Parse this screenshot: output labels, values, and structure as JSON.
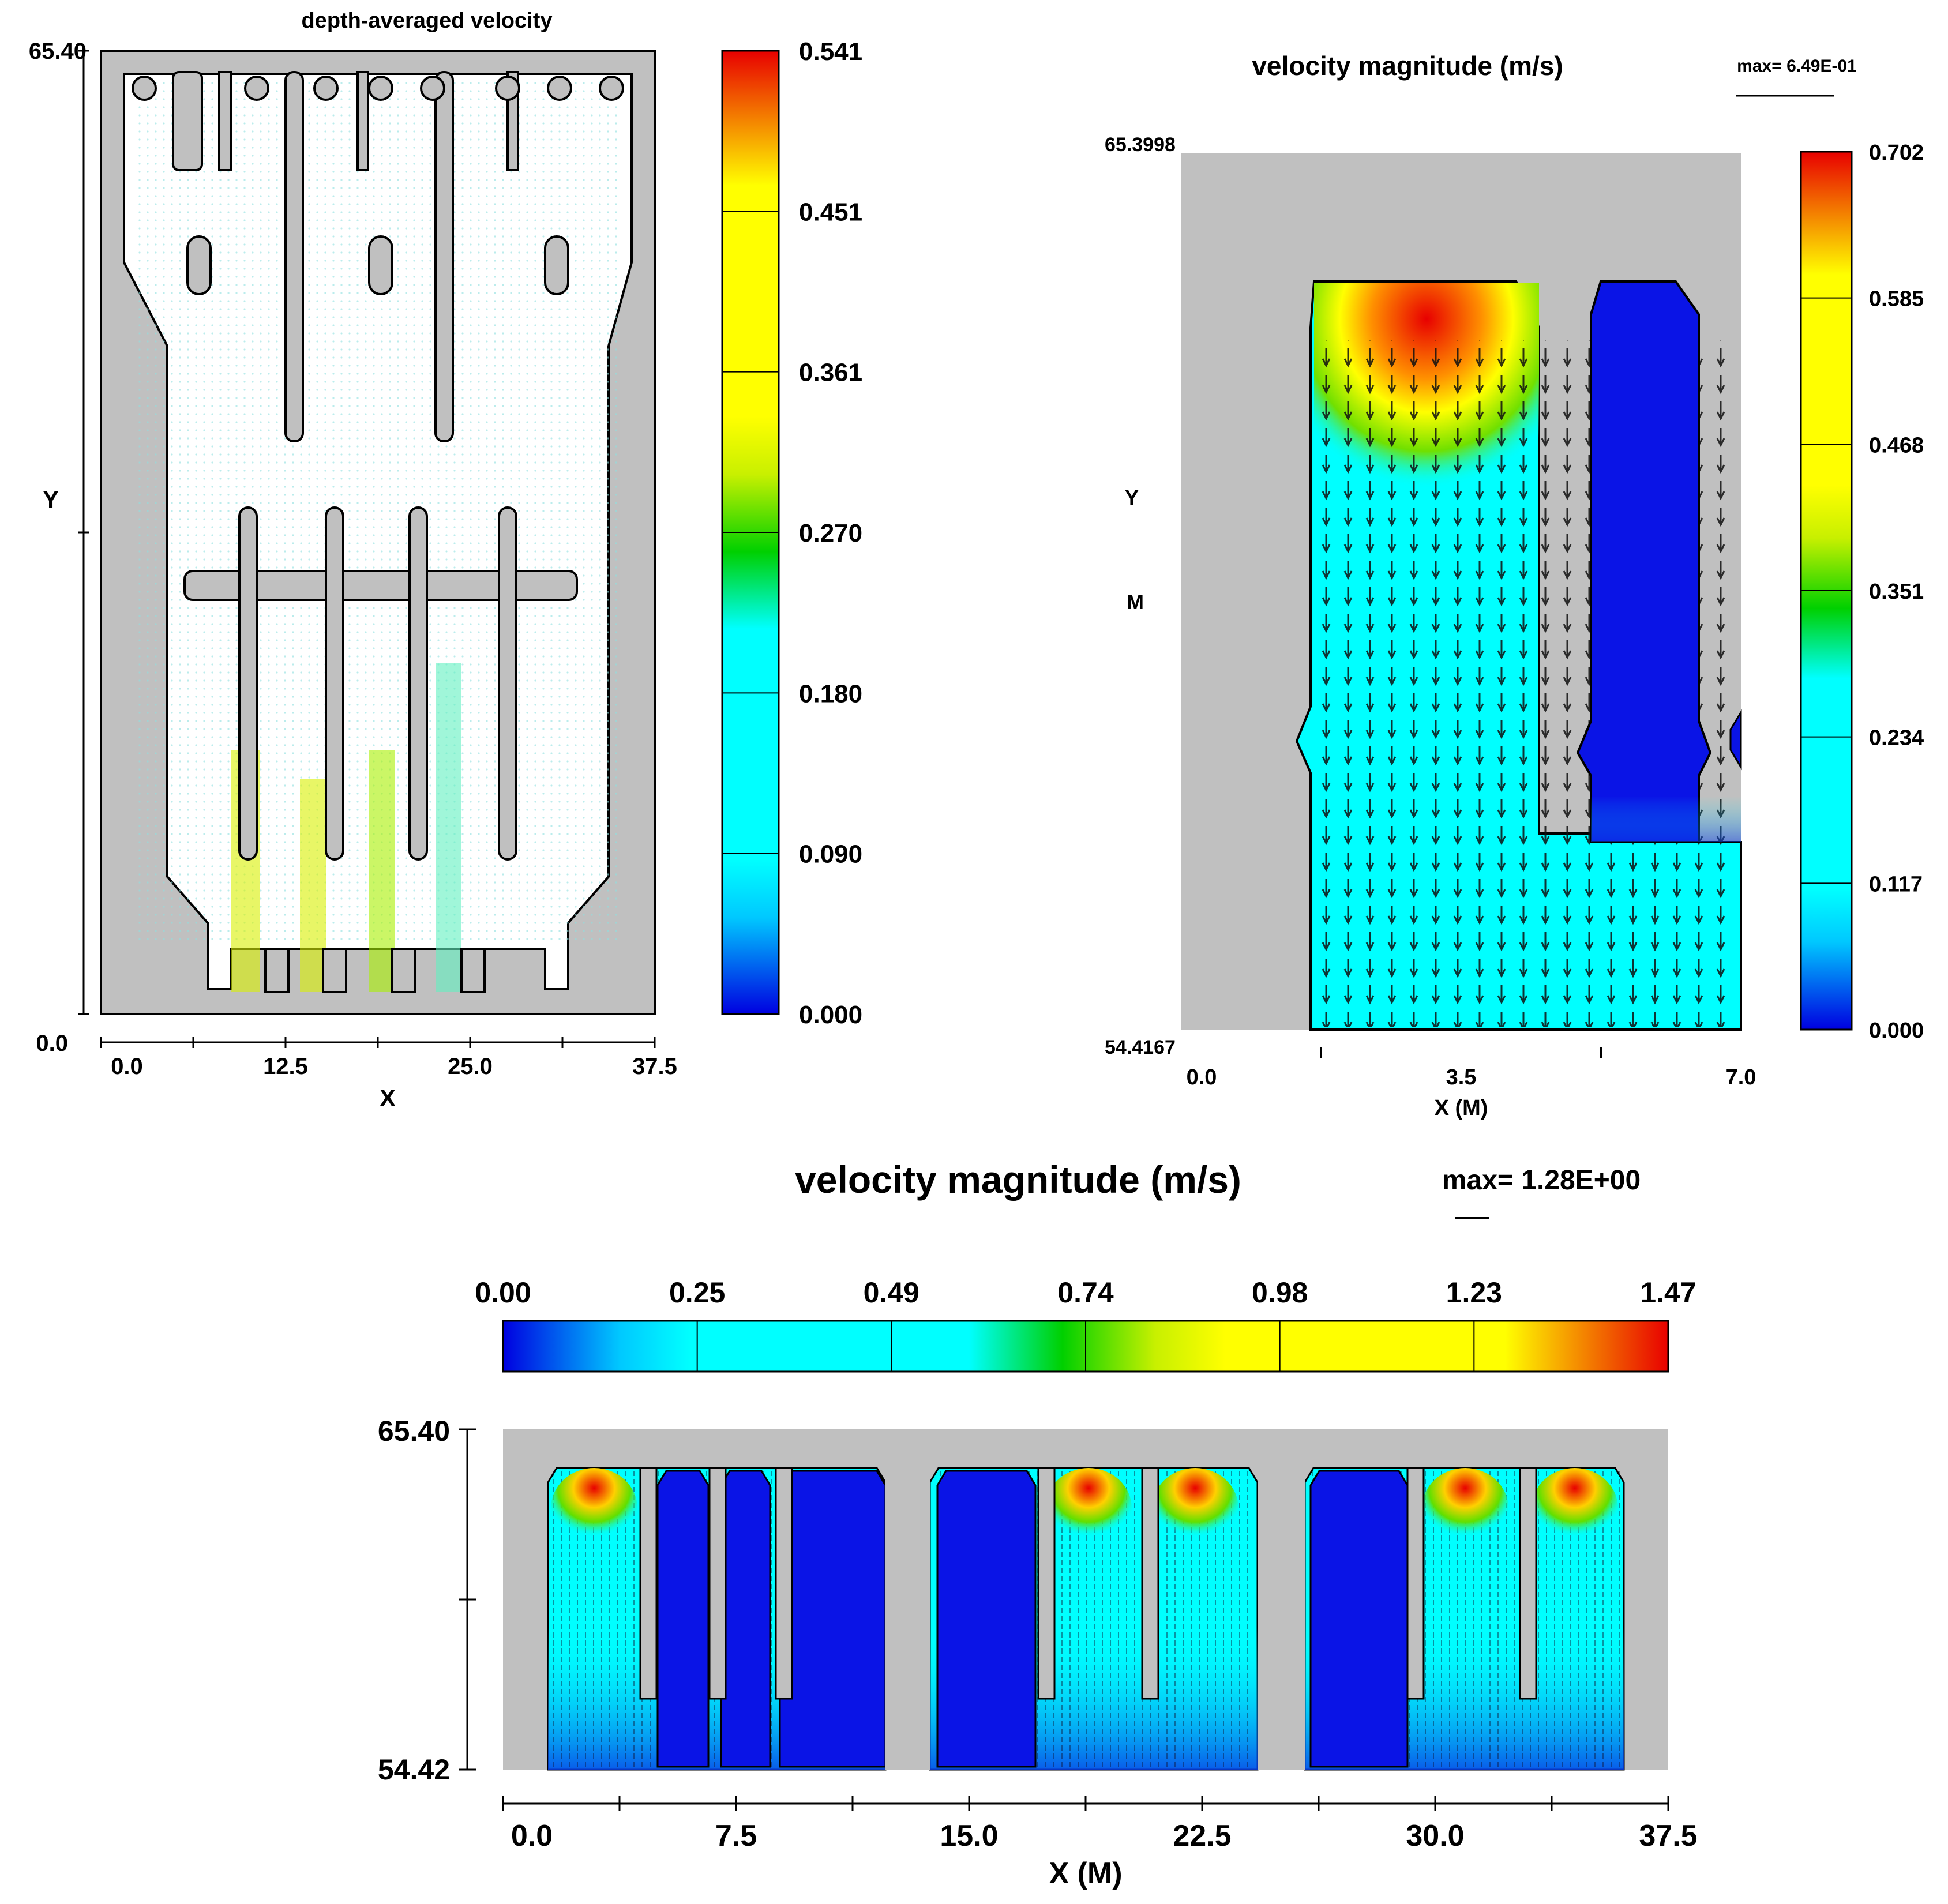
{
  "colors": {
    "gray": "#c0c0c0",
    "blue": "#0a14e6",
    "cyan": "#00f0f0",
    "green": "#00d000",
    "yellow": "#f8f800",
    "red": "#e80000",
    "stops": [
      "#0000e0",
      "#00ffff",
      "#00ffff",
      "#00d000",
      "#ffff00",
      "#ffff00",
      "#e80000"
    ]
  },
  "chart_data": [
    {
      "type": "heatmap",
      "title": "depth-averaged velocity",
      "xlabel": "X",
      "ylabel": "Y",
      "xlim": [
        0.0,
        37.5
      ],
      "ylim": [
        0.0,
        65.4
      ],
      "x_ticks": [
        "0.0",
        "12.5",
        "25.0",
        "37.5"
      ],
      "y_ticks": [
        "65.40",
        "0.0"
      ],
      "colorbar": {
        "orientation": "vertical",
        "ticks": [
          "0.541",
          "0.451",
          "0.361",
          "0.270",
          "0.180",
          "0.090",
          "0.000"
        ]
      }
    },
    {
      "type": "heatmap",
      "title": "velocity magnitude (m/s)",
      "max_label": "max= 6.49E-01",
      "xlabel": "X (M)",
      "ylabel_top": "Y",
      "ylabel_bottom": "M",
      "xlim": [
        0.0,
        7.0
      ],
      "ylim": [
        54.4167,
        65.3998
      ],
      "x_ticks": [
        "0.0",
        "3.5",
        "7.0"
      ],
      "y_ticks": [
        "65.3998",
        "54.4167"
      ],
      "colorbar": {
        "orientation": "vertical",
        "ticks": [
          "0.702",
          "0.585",
          "0.468",
          "0.351",
          "0.234",
          "0.117",
          "0.000"
        ]
      }
    },
    {
      "type": "heatmap",
      "title": "velocity magnitude (m/s)",
      "max_label": "max= 1.28E+00",
      "xlabel": "X  (M)",
      "xlim": [
        0.0,
        37.5
      ],
      "ylim": [
        54.42,
        65.4
      ],
      "x_ticks": [
        "0.0",
        "7.5",
        "15.0",
        "22.5",
        "30.0",
        "37.5"
      ],
      "y_ticks": [
        "65.40",
        "54.42"
      ],
      "colorbar": {
        "orientation": "horizontal",
        "ticks": [
          "0.00",
          "0.25",
          "0.49",
          "0.74",
          "0.98",
          "1.23",
          "1.47"
        ]
      }
    }
  ]
}
